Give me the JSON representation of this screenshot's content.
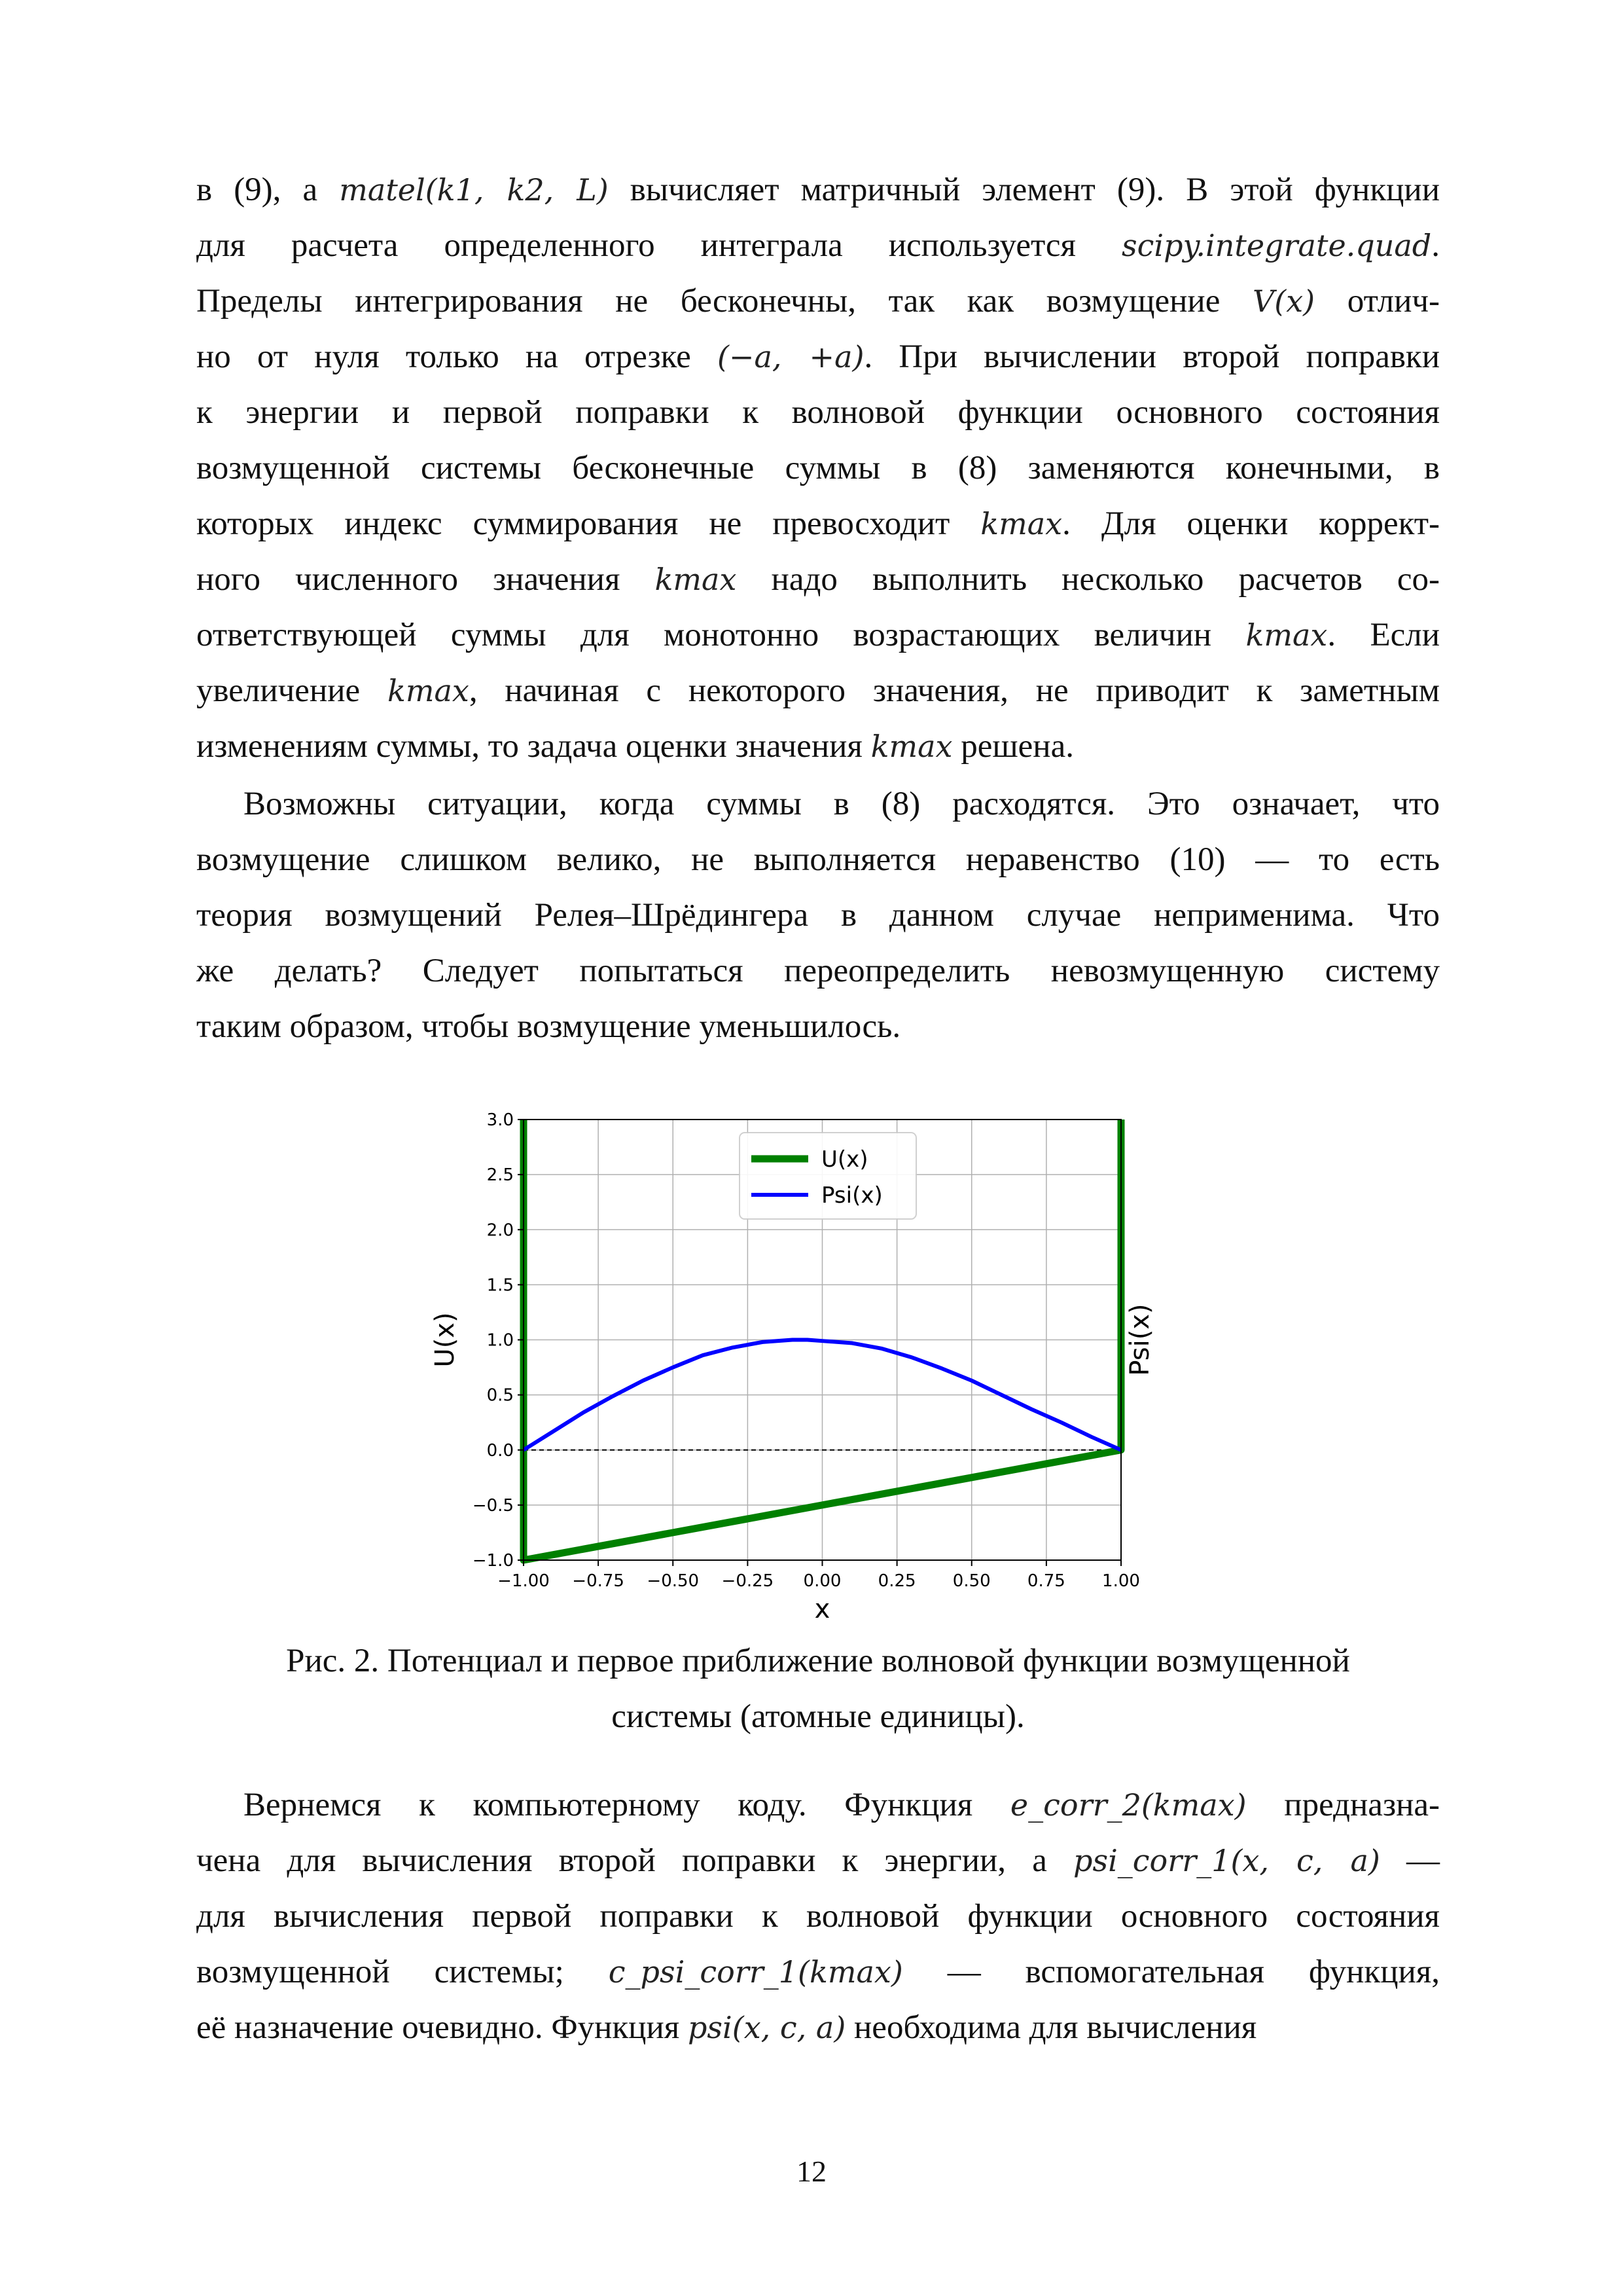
{
  "paragraph1": {
    "lines": [
      [
        "в (9), а ",
        {
          "m": "matel(k1, k2, L)"
        },
        " вычисляет матричный элемент (9). В этой функции"
      ],
      [
        "для расчета определенного интеграла используется ",
        {
          "m": "scipy.integrate.quad"
        },
        "."
      ],
      [
        "Пределы интегрирования не бесконечны, так как возмущение ",
        {
          "m": "V(x)"
        },
        " отлич-"
      ],
      [
        "но от нуля только на отрезке ",
        {
          "m": "(−a, +a)"
        },
        ". При вычислении второй поправки"
      ],
      [
        "к энергии и первой поправки к волновой функции основного состояния"
      ],
      [
        "возмущенной системы бесконечные суммы в (8) заменяются конечными, в"
      ],
      [
        "которых индекс суммирования не превосходит ",
        {
          "m": "kmax"
        },
        ". Для оценки коррект-"
      ],
      [
        "ного численного значения ",
        {
          "m": "kmax"
        },
        " надо выполнить несколько расчетов со-"
      ],
      [
        "ответствующей суммы для монотонно возрастающих величин ",
        {
          "m": "kmax"
        },
        ". Если"
      ],
      [
        "увеличение ",
        {
          "m": "kmax"
        },
        ", начиная с некоторого значения, не приводит к заметным"
      ],
      [
        "изменениям суммы, то задача оценки значения ",
        {
          "m": "kmax"
        },
        " решена."
      ]
    ]
  },
  "paragraph2": {
    "lines": [
      [
        "Возможны ситуации, когда суммы в (8) расходятся. Это означает, что"
      ],
      [
        "возмущение слишком велико, не выполняется неравенство (10) — то есть"
      ],
      [
        "теория возмущений Релея–Шрёдингера в данном случае неприменима. Что"
      ],
      [
        "же делать? Следует попытаться переопределить невозмущенную систему"
      ],
      [
        "таким образом, чтобы возмущение уменьшилось."
      ]
    ]
  },
  "caption": {
    "line1": "Рис. 2. Потенциал и первое приближение волновой функции возмущенной",
    "line2": "системы (атомные единицы)."
  },
  "paragraph3": {
    "lines": [
      [
        "Вернемся к компьютерному коду. Функция ",
        {
          "m": "e_corr_2(kmax)"
        },
        " предназна-"
      ],
      [
        "чена для вычисления второй поправки к энергии, а ",
        {
          "m": "psi_corr_1(x, c, a)"
        },
        " —"
      ],
      [
        "для вычисления первой поправки к волновой функции основного состояния"
      ],
      [
        "возмущенной системы; ",
        {
          "m": "c_psi_corr_1(kmax)"
        },
        " — вспомогательная функция,"
      ],
      [
        "её назначение очевидно. Функция ",
        {
          "m": "psi(x, c, a)"
        },
        " необходима для вычисления"
      ]
    ]
  },
  "page_number": "12",
  "chart_data": {
    "type": "line",
    "xlabel": "x",
    "ylabel": "U(x)",
    "ylabel_right": "Psi(x)",
    "xlim": [
      -1.0,
      1.0
    ],
    "ylim": [
      -1.0,
      3.0
    ],
    "xticks": [
      "−1.00",
      "−0.75",
      "−0.50",
      "−0.25",
      "0.00",
      "0.25",
      "0.50",
      "0.75",
      "1.00"
    ],
    "xtick_values": [
      -1.0,
      -0.75,
      -0.5,
      -0.25,
      0.0,
      0.25,
      0.5,
      0.75,
      1.0
    ],
    "yticks": [
      "−1.0",
      "−0.5",
      "0.0",
      "0.5",
      "1.0",
      "1.5",
      "2.0",
      "2.5",
      "3.0"
    ],
    "ytick_values": [
      -1.0,
      -0.5,
      0.0,
      0.5,
      1.0,
      1.5,
      2.0,
      2.5,
      3.0
    ],
    "grid": true,
    "legend_position": "top-center",
    "series": [
      {
        "name": "U(x)",
        "color": "#008000",
        "x": [
          -1.0,
          -1.0,
          1.0,
          1.0
        ],
        "y": [
          3.0,
          -1.0,
          0.0,
          3.0
        ]
      },
      {
        "name": "Psi(x)",
        "color": "#0000ff",
        "x": [
          -1.0,
          -0.9,
          -0.8,
          -0.7,
          -0.6,
          -0.5,
          -0.4,
          -0.3,
          -0.2,
          -0.1,
          -0.05,
          0.0,
          0.1,
          0.2,
          0.3,
          0.4,
          0.5,
          0.6,
          0.7,
          0.8,
          0.9,
          1.0
        ],
        "y": [
          0.0,
          0.17,
          0.34,
          0.49,
          0.63,
          0.75,
          0.86,
          0.93,
          0.98,
          1.0,
          1.0,
          0.99,
          0.97,
          0.92,
          0.84,
          0.74,
          0.63,
          0.5,
          0.37,
          0.25,
          0.12,
          0.0
        ]
      }
    ],
    "baseline": {
      "y": 0.0,
      "style": "dashed",
      "color": "#000000"
    }
  }
}
